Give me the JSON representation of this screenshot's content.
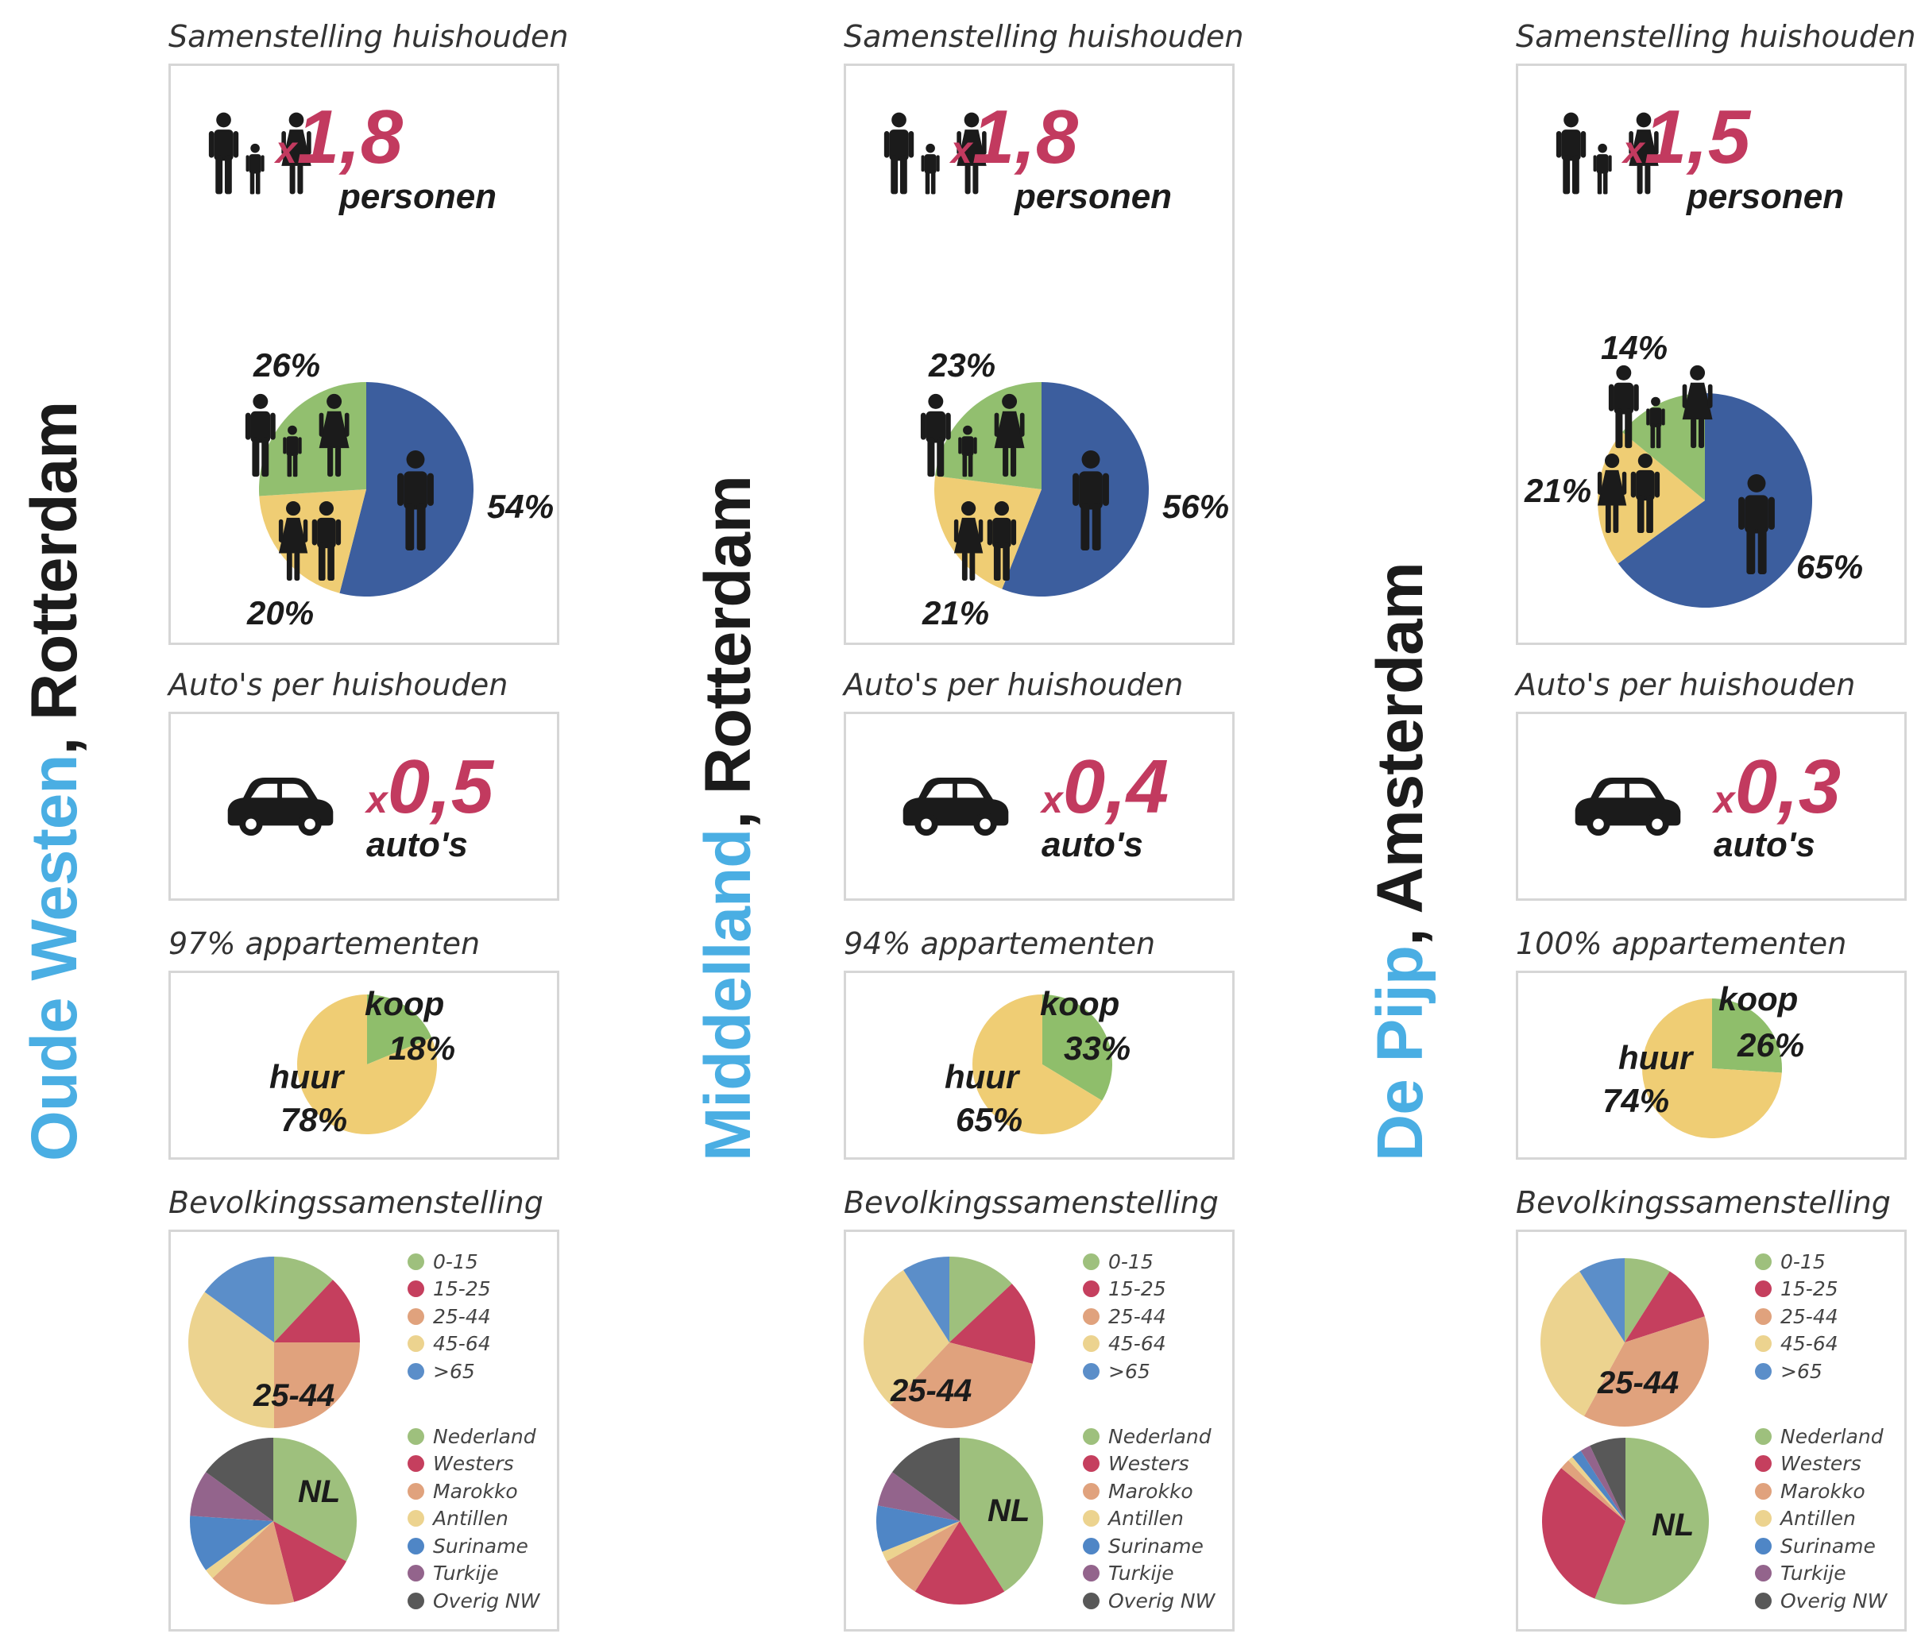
{
  "colors": {
    "title_highlight": "#4aaee3",
    "accent": "#c23a5f",
    "single": "#3c5e9e",
    "couple": "#efcd74",
    "family": "#92bf6f",
    "koop": "#8fbe6b",
    "huur": "#efcd74",
    "age": [
      "#9ec07d",
      "#c53f5e",
      "#e0a27d",
      "#ecd38f",
      "#5b8ec9"
    ],
    "origin": [
      "#9ec07d",
      "#c53f5e",
      "#e0a27d",
      "#ecd38f",
      "#4f86c6",
      "#93648c",
      "#585858"
    ]
  },
  "labels": {
    "household_title": "Samenstelling huishouden",
    "cars_title": "Auto's per huishouden",
    "population_title": "Bevolkingssamenstelling",
    "x_prefix": "x",
    "personen": "personen",
    "autos": "auto's",
    "koop": "koop",
    "huur": "huur",
    "age_center": "25-44",
    "origin_center": "NL"
  },
  "legends": {
    "age": [
      "0-15",
      "15-25",
      "25-44",
      "45-64",
      ">65"
    ],
    "origin": [
      "Nederland",
      "Westers",
      "Marokko",
      "Antillen",
      "Suriname",
      "Turkije",
      "Overig NW"
    ]
  },
  "icons": [
    "family-icon",
    "person-icon",
    "couple-icon",
    "car-icon"
  ],
  "chart_data": [
    {
      "type": "pie",
      "district": "Oude Westen",
      "city": "Rotterdam",
      "title_sep": ", ",
      "household_size": "1,8",
      "cars_per_household": "0,5",
      "apartments_label": "97% appartementen",
      "household_composition": {
        "categories": [
          "single",
          "couple",
          "family"
        ],
        "values": [
          54,
          20,
          26
        ],
        "labels": [
          "54%",
          "20%",
          "26%"
        ]
      },
      "housing": {
        "categories": [
          "koop",
          "huur"
        ],
        "values": [
          18,
          78
        ],
        "labels": [
          "18%",
          "78%"
        ]
      },
      "age": {
        "categories": [
          "0-15",
          "15-25",
          "25-44",
          "45-64",
          ">65"
        ],
        "values": [
          12,
          13,
          25,
          35,
          15
        ]
      },
      "origin": {
        "categories": [
          "Nederland",
          "Westers",
          "Marokko",
          "Antillen",
          "Suriname",
          "Turkije",
          "Overig NW"
        ],
        "values": [
          33,
          13,
          17,
          2,
          11,
          9,
          15
        ]
      }
    },
    {
      "type": "pie",
      "district": "Middelland",
      "city": "Rotterdam",
      "title_sep": ", ",
      "household_size": "1,8",
      "cars_per_household": "0,4",
      "apartments_label": "94% appartementen",
      "household_composition": {
        "categories": [
          "single",
          "couple",
          "family"
        ],
        "values": [
          56,
          21,
          23
        ],
        "labels": [
          "56%",
          "21%",
          "23%"
        ]
      },
      "housing": {
        "categories": [
          "koop",
          "huur"
        ],
        "values": [
          33,
          65
        ],
        "labels": [
          "33%",
          "65%"
        ]
      },
      "age": {
        "categories": [
          "0-15",
          "15-25",
          "25-44",
          "45-64",
          ">65"
        ],
        "values": [
          13,
          16,
          33,
          29,
          9
        ]
      },
      "origin": {
        "categories": [
          "Nederland",
          "Westers",
          "Marokko",
          "Antillen",
          "Suriname",
          "Turkije",
          "Overig NW"
        ],
        "values": [
          41,
          18,
          8,
          2,
          9,
          7,
          15
        ]
      }
    },
    {
      "type": "pie",
      "district": "De Pijp",
      "city": "Amsterdam",
      "title_sep": ", ",
      "household_size": "1,5",
      "cars_per_household": "0,3",
      "apartments_label": "100% appartementen",
      "household_composition": {
        "categories": [
          "single",
          "couple",
          "family"
        ],
        "values": [
          65,
          21,
          14
        ],
        "labels": [
          "65%",
          "21%",
          "14%"
        ]
      },
      "housing": {
        "categories": [
          "koop",
          "huur"
        ],
        "values": [
          26,
          74
        ],
        "labels": [
          "26%",
          "74%"
        ]
      },
      "age": {
        "categories": [
          "0-15",
          "15-25",
          "25-44",
          "45-64",
          ">65"
        ],
        "values": [
          9,
          11,
          38,
          33,
          9
        ]
      },
      "origin": {
        "categories": [
          "Nederland",
          "Westers",
          "Marokko",
          "Antillen",
          "Suriname",
          "Turkije",
          "Overig NW"
        ],
        "values": [
          56,
          30,
          2,
          1,
          2,
          2,
          7
        ]
      }
    }
  ]
}
